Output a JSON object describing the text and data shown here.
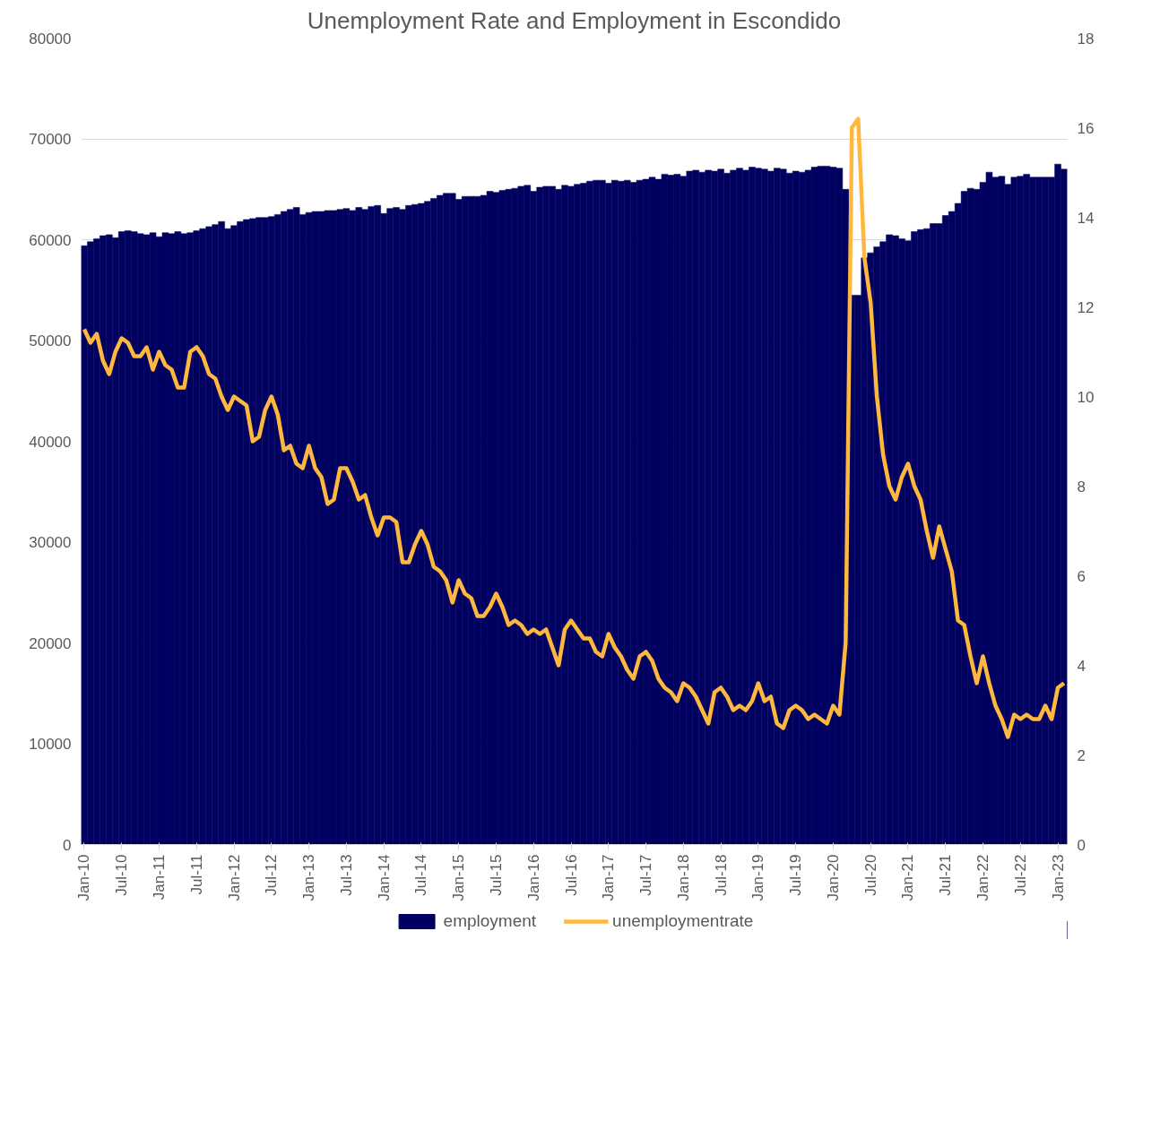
{
  "chart_data": {
    "type": "bar",
    "title": "Unemployment Rate and Employment in Escondido",
    "categories": [
      "Jan-10",
      null,
      null,
      null,
      null,
      null,
      "Jul-10",
      null,
      null,
      null,
      null,
      null,
      "Jan-11",
      null,
      null,
      null,
      null,
      null,
      "Jul-11",
      null,
      null,
      null,
      null,
      null,
      "Jan-12",
      null,
      null,
      null,
      null,
      null,
      "Jul-12",
      null,
      null,
      null,
      null,
      null,
      "Jan-13",
      null,
      null,
      null,
      null,
      null,
      "Jul-13",
      null,
      null,
      null,
      null,
      null,
      "Jan-14",
      null,
      null,
      null,
      null,
      null,
      "Jul-14",
      null,
      null,
      null,
      null,
      null,
      "Jan-15",
      null,
      null,
      null,
      null,
      null,
      "Jul-15",
      null,
      null,
      null,
      null,
      null,
      "Jan-16",
      null,
      null,
      null,
      null,
      null,
      "Jul-16",
      null,
      null,
      null,
      null,
      null,
      "Jan-17",
      null,
      null,
      null,
      null,
      null,
      "Jul-17",
      null,
      null,
      null,
      null,
      null,
      "Jan-18",
      null,
      null,
      null,
      null,
      null,
      "Jul-18",
      null,
      null,
      null,
      null,
      null,
      "Jan-19",
      null,
      null,
      null,
      null,
      null,
      "Jul-19",
      null,
      null,
      null,
      null,
      null,
      "Jan-20",
      null,
      null,
      null,
      null,
      null,
      "Jul-20",
      null,
      null,
      null,
      null,
      null,
      "Jan-21",
      null,
      null,
      null,
      null,
      null,
      "Jul-21",
      null,
      null,
      null,
      null,
      null,
      "Jan-22",
      null,
      null,
      null,
      null,
      null,
      "Jul-22",
      null,
      null,
      null,
      null,
      null,
      "Jan-23",
      null
    ],
    "series": [
      {
        "name": "employment",
        "color": "#000060",
        "values": [
          59400,
          59800,
          60100,
          60400,
          60500,
          60200,
          60800,
          60900,
          60800,
          60600,
          60500,
          60700,
          60300,
          60700,
          60600,
          60800,
          60600,
          60700,
          60900,
          61100,
          61300,
          61500,
          61800,
          61100,
          61400,
          61800,
          62000,
          62100,
          62200,
          62200,
          62300,
          62500,
          62800,
          63000,
          63200,
          62500,
          62700,
          62800,
          62800,
          62900,
          62900,
          63000,
          63100,
          62900,
          63200,
          63000,
          63300,
          63400,
          62600,
          63100,
          63200,
          63000,
          63400,
          63500,
          63600,
          63800,
          64100,
          64400,
          64600,
          64600,
          64000,
          64300,
          64300,
          64300,
          64400,
          64800,
          64700,
          64900,
          65000,
          65100,
          65300,
          65400,
          64800,
          65200,
          65300,
          65300,
          65000,
          65400,
          65300,
          65500,
          65600,
          65800,
          65900,
          65900,
          65600,
          65900,
          65800,
          65900,
          65700,
          65900,
          66000,
          66200,
          66000,
          66500,
          66400,
          66500,
          66300,
          66800,
          66900,
          66700,
          66900,
          66800,
          67000,
          66600,
          66900,
          67100,
          66900,
          67200,
          67100,
          67000,
          66800,
          67100,
          67000,
          66600,
          66800,
          66700,
          66900,
          67200,
          67300,
          67300,
          67200,
          67100,
          65000,
          54500,
          54500,
          58200,
          58700,
          59300,
          59800,
          60500,
          60400,
          60100,
          59900,
          60800,
          61000,
          61100,
          61600,
          61600,
          62400,
          62800,
          63600,
          64800,
          65100,
          65000,
          65700,
          66700,
          66200,
          66300,
          65500,
          66200,
          66300,
          66500,
          66200,
          66200,
          66200,
          66200,
          67500,
          67000
        ]
      },
      {
        "name": "unemploymentrate",
        "type": "line",
        "axis": "y2",
        "color": "#ffb83d",
        "values": [
          11.5,
          11.2,
          11.4,
          10.8,
          10.5,
          11.0,
          11.3,
          11.2,
          10.9,
          10.9,
          11.1,
          10.6,
          11.0,
          10.7,
          10.6,
          10.2,
          10.2,
          11.0,
          11.1,
          10.9,
          10.5,
          10.4,
          10.0,
          9.7,
          10.0,
          9.9,
          9.8,
          9.0,
          9.1,
          9.7,
          10.0,
          9.6,
          8.8,
          8.9,
          8.5,
          8.4,
          8.9,
          8.4,
          8.2,
          7.6,
          7.7,
          8.4,
          8.4,
          8.1,
          7.7,
          7.8,
          7.3,
          6.9,
          7.3,
          7.3,
          7.2,
          6.3,
          6.3,
          6.7,
          7.0,
          6.7,
          6.2,
          6.1,
          5.9,
          5.4,
          5.9,
          5.6,
          5.5,
          5.1,
          5.1,
          5.3,
          5.6,
          5.3,
          4.9,
          5.0,
          4.9,
          4.7,
          4.8,
          4.7,
          4.8,
          4.4,
          4.0,
          4.8,
          5.0,
          4.8,
          4.6,
          4.6,
          4.3,
          4.2,
          4.7,
          4.4,
          4.2,
          3.9,
          3.7,
          4.2,
          4.3,
          4.1,
          3.7,
          3.5,
          3.4,
          3.2,
          3.6,
          3.5,
          3.3,
          3.0,
          2.7,
          3.4,
          3.5,
          3.3,
          3.0,
          3.1,
          3.0,
          3.2,
          3.6,
          3.2,
          3.3,
          2.7,
          2.6,
          3.0,
          3.1,
          3.0,
          2.8,
          2.9,
          2.8,
          2.7,
          3.1,
          2.9,
          4.5,
          16.0,
          16.2,
          13.1,
          12.1,
          10.0,
          8.7,
          8.0,
          7.7,
          8.2,
          8.5,
          8.0,
          7.7,
          7.0,
          6.4,
          7.1,
          6.6,
          6.1,
          5.0,
          4.9,
          4.2,
          3.6,
          4.2,
          3.6,
          3.1,
          2.8,
          2.4,
          2.9,
          2.8,
          2.9,
          2.8,
          2.8,
          3.1,
          2.8,
          3.5,
          3.6
        ]
      }
    ],
    "ylim": [
      0,
      80000
    ],
    "yticks": [
      0,
      10000,
      20000,
      30000,
      40000,
      50000,
      60000,
      70000,
      80000
    ],
    "y2lim": [
      0,
      18
    ],
    "y2ticks": [
      0,
      2,
      4,
      6,
      8,
      10,
      12,
      14,
      16,
      18
    ],
    "grid": "y",
    "legend": "bottom",
    "line_style": "solid"
  }
}
